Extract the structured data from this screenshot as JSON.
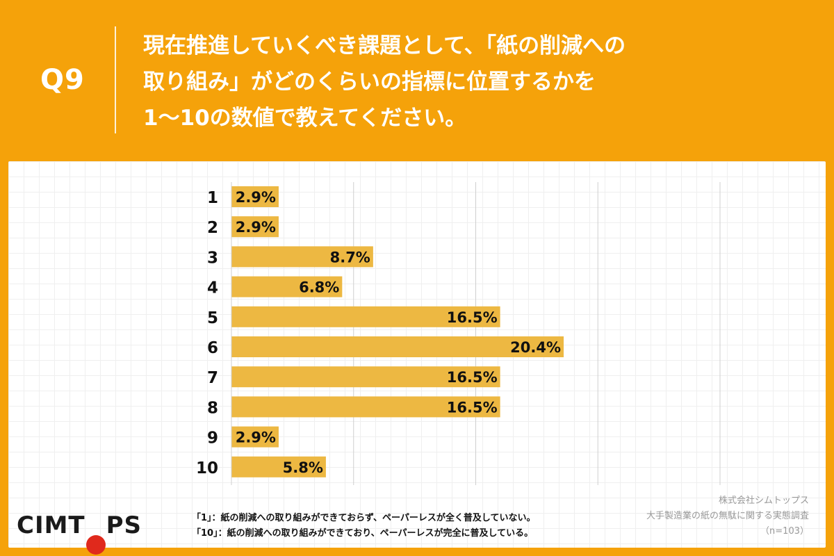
{
  "header": {
    "question_no": "Q9",
    "title_lines": [
      "現在推進していくべき課題として、「紙の削減への",
      "取り組み」がどのくらいの指標に位置するかを",
      "1〜10の数値で教えてください。"
    ]
  },
  "colors": {
    "background": "#F5A20A",
    "bar": "#EDB842",
    "logo_accent": "#E0291C"
  },
  "chart_data": {
    "type": "bar",
    "orientation": "horizontal",
    "categories": [
      "1",
      "2",
      "3",
      "4",
      "5",
      "6",
      "7",
      "8",
      "9",
      "10"
    ],
    "values": [
      2.9,
      2.9,
      8.7,
      6.8,
      16.5,
      20.4,
      16.5,
      16.5,
      2.9,
      5.8
    ],
    "value_labels": [
      "2.9%",
      "2.9%",
      "8.7%",
      "6.8%",
      "16.5%",
      "20.4%",
      "16.5%",
      "16.5%",
      "2.9%",
      "5.8%"
    ],
    "xlim": [
      0,
      30
    ],
    "gridlines": [
      0,
      7.5,
      15,
      22.5,
      30
    ],
    "grid": true,
    "title": "",
    "xlabel": "",
    "ylabel": ""
  },
  "footer": {
    "logo_left": "CIMT",
    "logo_right": "PS",
    "note_1": "「1」：紙の削減への取り組みができておらず、ペーパーレスが全く普及していない。",
    "note_10": "「10」：紙の削減への取り組みができており、ペーパーレスが完全に普及している。",
    "source_company": "株式会社シムトップス",
    "source_survey": "大手製造業の紙の無駄に関する実態調査",
    "sample": "（n=103）"
  }
}
